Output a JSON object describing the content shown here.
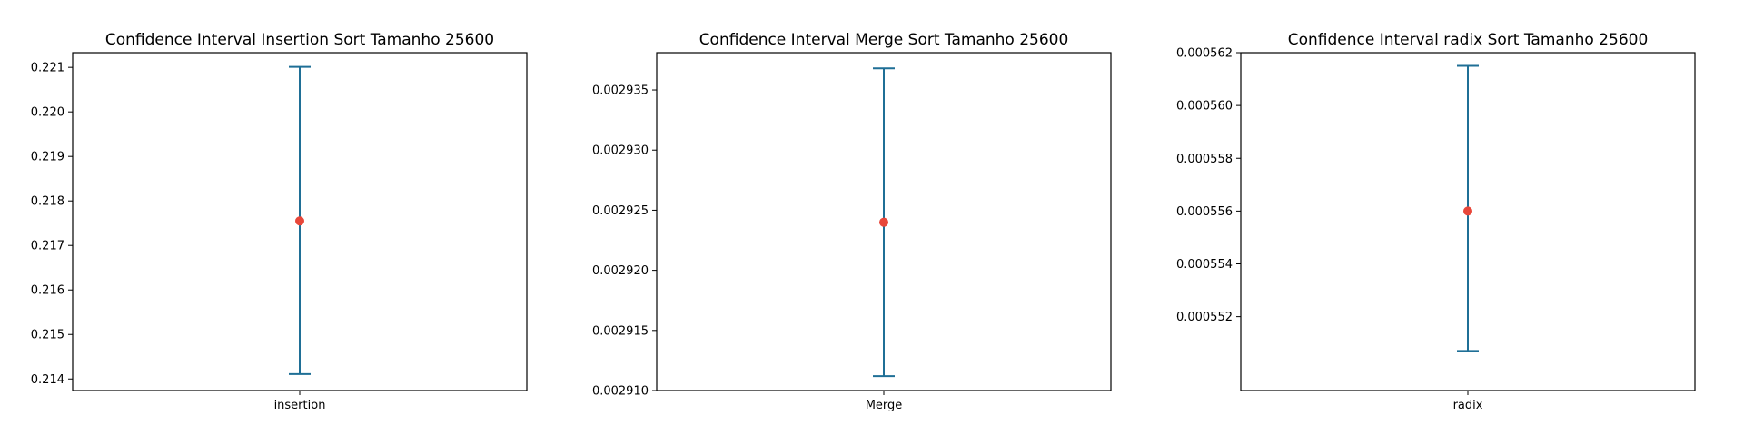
{
  "chart_data": [
    {
      "type": "errorbar",
      "title": "Confidence Interval Insertion Sort Tamanho 25600",
      "categories": [
        "insertion"
      ],
      "mean": 0.21755,
      "lower": 0.21411,
      "upper": 0.22101,
      "ylim": [
        0.21374,
        0.22133
      ],
      "yticks": [
        0.214,
        0.215,
        0.216,
        0.217,
        0.218,
        0.219,
        0.22,
        0.221
      ],
      "ytick_labels": [
        "0.214",
        "0.215",
        "0.216",
        "0.217",
        "0.218",
        "0.219",
        "0.220",
        "0.221"
      ],
      "bar_color": "#1f6f96",
      "marker_color": "#e8473a",
      "grid": false
    },
    {
      "type": "errorbar",
      "title": "Confidence Interval Merge Sort Tamanho 25600",
      "categories": [
        "Merge"
      ],
      "mean": 0.002924,
      "lower": 0.0029112,
      "upper": 0.0029368,
      "ylim": [
        0.00291,
        0.0029381
      ],
      "yticks": [
        0.00291,
        0.002915,
        0.00292,
        0.002925,
        0.00293,
        0.002935
      ],
      "ytick_labels": [
        "0.002910",
        "0.002915",
        "0.002920",
        "0.002925",
        "0.002930",
        "0.002935"
      ],
      "bar_color": "#1f6f96",
      "marker_color": "#e8473a",
      "grid": false
    },
    {
      "type": "errorbar",
      "title": "Confidence Interval radix Sort Tamanho 25600",
      "categories": [
        "radix"
      ],
      "mean": 0.000556,
      "lower": 0.0005507,
      "upper": 0.0005615,
      "ylim": [
        0.0005492,
        0.000562
      ],
      "yticks": [
        0.000552,
        0.000554,
        0.000556,
        0.000558,
        0.00056,
        0.000562
      ],
      "ytick_labels": [
        "0.000552",
        "0.000554",
        "0.000556",
        "0.000558",
        "0.000560",
        "0.000562"
      ],
      "bar_color": "#1f6f96",
      "marker_color": "#e8473a",
      "grid": false
    }
  ]
}
